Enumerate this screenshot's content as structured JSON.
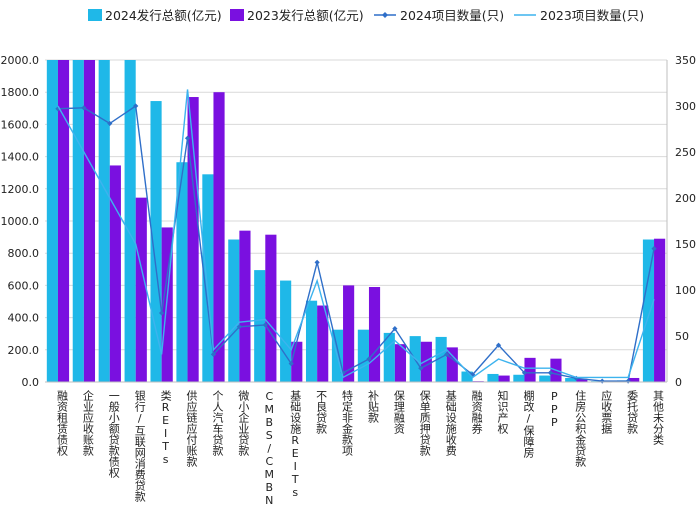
{
  "chart_data": {
    "type": "bar",
    "categories": [
      "融资租赁债权",
      "企业应收账款",
      "一般小额贷款债权",
      "银行/互联网消费贷款",
      "类REITs",
      "供应链应付账款",
      "个人汽车贷款",
      "微小企业贷款",
      "CMBS/CMBN",
      "基础设施REITs",
      "不良贷款",
      "特定非金款项",
      "补贴款",
      "保理融资",
      "保单质押贷款",
      "基础设施收费",
      "融资融券",
      "知识产权",
      "棚改/保障房",
      "PPP",
      "住房公积金贷款",
      "应收票据",
      "委托贷款",
      "其他未分类"
    ],
    "series": [
      {
        "name": "2024发行总额(亿元)",
        "kind": "bar",
        "axis": "left",
        "color": "#1fb8e8",
        "values": [
          2000,
          2000,
          2000,
          2000,
          1745,
          1365,
          1290,
          885,
          695,
          630,
          505,
          325,
          325,
          305,
          285,
          280,
          65,
          50,
          45,
          40,
          25,
          5,
          10,
          885
        ]
      },
      {
        "name": "2023发行总额(亿元)",
        "kind": "bar",
        "axis": "left",
        "color": "#7a10e0",
        "values": [
          2000,
          2000,
          1345,
          1145,
          960,
          1770,
          1800,
          940,
          915,
          250,
          475,
          600,
          590,
          235,
          250,
          215,
          5,
          40,
          150,
          145,
          20,
          5,
          25,
          890
        ]
      },
      {
        "name": "2024项目数量(只)",
        "kind": "line",
        "axis": "right",
        "color": "#2f6fc9",
        "marker": "diamond",
        "values": [
          297,
          298,
          281,
          300,
          75,
          265,
          30,
          60,
          62,
          20,
          130,
          10,
          25,
          58,
          15,
          30,
          8,
          40,
          10,
          10,
          4,
          1,
          1,
          145
        ]
      },
      {
        "name": "2023项目数量(只)",
        "kind": "line",
        "axis": "right",
        "color": "#3db3ee",
        "marker": "none",
        "values": [
          300,
          250,
          200,
          150,
          30,
          318,
          35,
          65,
          68,
          35,
          110,
          5,
          20,
          45,
          20,
          35,
          5,
          25,
          15,
          15,
          5,
          5,
          5,
          90
        ]
      }
    ],
    "ylim": [
      0,
      2000
    ],
    "y_ticks": [
      "0.0",
      "200.0",
      "400.0",
      "600.0",
      "800.0",
      "1000.0",
      "1200.0",
      "1400.0",
      "1600.0",
      "1800.0",
      "2000.0"
    ],
    "y2lim": [
      0,
      350
    ],
    "y2_ticks": [
      "0",
      "50",
      "100",
      "150",
      "200",
      "250",
      "300",
      "350"
    ],
    "legend_position": "top",
    "grid": "horizontal"
  }
}
